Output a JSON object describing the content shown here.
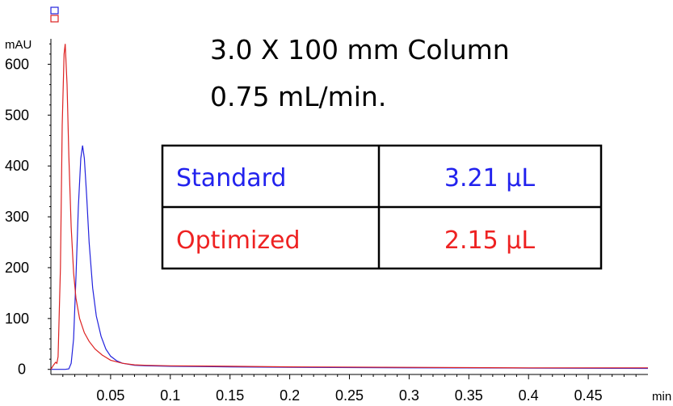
{
  "chart_data": {
    "type": "line",
    "xlabel": "min",
    "ylabel": "mAU",
    "xlim": [
      0,
      0.5
    ],
    "ylim": [
      -10,
      650
    ],
    "x_ticks": [
      {
        "v": 0.05,
        "label": "0.05"
      },
      {
        "v": 0.1,
        "label": "0.1"
      },
      {
        "v": 0.15,
        "label": "0.15"
      },
      {
        "v": 0.2,
        "label": "0.2"
      },
      {
        "v": 0.25,
        "label": "0.25"
      },
      {
        "v": 0.3,
        "label": "0.3"
      },
      {
        "v": 0.35,
        "label": "0.35"
      },
      {
        "v": 0.4,
        "label": "0.4"
      },
      {
        "v": 0.45,
        "label": "0.45"
      }
    ],
    "y_ticks": [
      {
        "v": 0,
        "label": "0"
      },
      {
        "v": 100,
        "label": "100"
      },
      {
        "v": 200,
        "label": "200"
      },
      {
        "v": 300,
        "label": "300"
      },
      {
        "v": 400,
        "label": "400"
      },
      {
        "v": 500,
        "label": "500"
      },
      {
        "v": 600,
        "label": "600"
      }
    ],
    "series": [
      {
        "color": "#2222dd",
        "points": [
          [
            0,
            0
          ],
          [
            0.012,
            0
          ],
          [
            0.015,
            1
          ],
          [
            0.017,
            12
          ],
          [
            0.019,
            60
          ],
          [
            0.021,
            180
          ],
          [
            0.023,
            320
          ],
          [
            0.025,
            415
          ],
          [
            0.0265,
            440
          ],
          [
            0.028,
            415
          ],
          [
            0.03,
            340
          ],
          [
            0.032,
            250
          ],
          [
            0.035,
            160
          ],
          [
            0.038,
            105
          ],
          [
            0.042,
            65
          ],
          [
            0.046,
            40
          ],
          [
            0.05,
            26
          ],
          [
            0.055,
            17
          ],
          [
            0.06,
            12
          ],
          [
            0.07,
            8
          ],
          [
            0.08,
            7
          ],
          [
            0.1,
            6
          ],
          [
            0.15,
            5
          ],
          [
            0.2,
            4
          ],
          [
            0.3,
            3
          ],
          [
            0.4,
            2.5
          ],
          [
            0.5,
            2
          ]
        ]
      },
      {
        "color": "#dd2222",
        "points": [
          [
            0,
            0
          ],
          [
            0.002,
            8
          ],
          [
            0.004,
            14
          ],
          [
            0.005,
            12
          ],
          [
            0.006,
            25
          ],
          [
            0.008,
            200
          ],
          [
            0.0095,
            480
          ],
          [
            0.011,
            620
          ],
          [
            0.012,
            640
          ],
          [
            0.0135,
            560
          ],
          [
            0.015,
            420
          ],
          [
            0.017,
            280
          ],
          [
            0.019,
            190
          ],
          [
            0.021,
            140
          ],
          [
            0.024,
            100
          ],
          [
            0.028,
            72
          ],
          [
            0.032,
            55
          ],
          [
            0.037,
            40
          ],
          [
            0.043,
            28
          ],
          [
            0.05,
            18
          ],
          [
            0.06,
            12
          ],
          [
            0.07,
            9
          ],
          [
            0.08,
            8
          ],
          [
            0.1,
            7
          ],
          [
            0.15,
            6
          ],
          [
            0.2,
            5
          ],
          [
            0.3,
            4
          ],
          [
            0.4,
            3
          ],
          [
            0.5,
            3
          ]
        ]
      }
    ],
    "annotations": {
      "line1": "3.0 X 100 mm Column",
      "line2": "0.75 mL/min."
    },
    "table": {
      "rows": [
        {
          "name": "Standard",
          "value": "3.21 µL",
          "color": "#2222ee"
        },
        {
          "name": "Optimized",
          "value": "2.15 µL",
          "color": "#ee2222"
        }
      ]
    }
  }
}
